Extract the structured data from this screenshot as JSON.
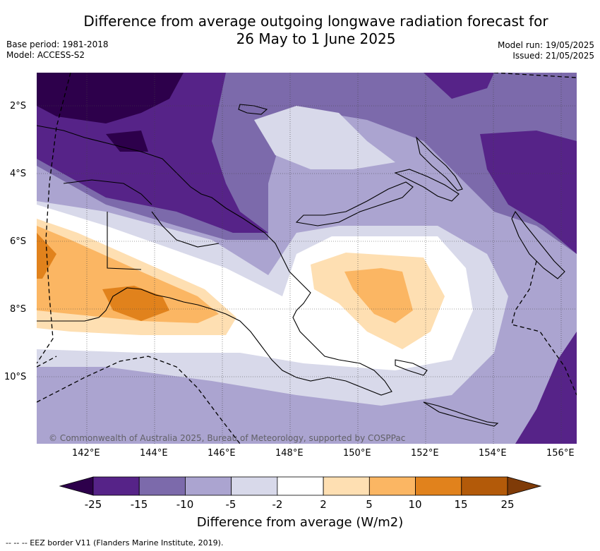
{
  "title_line1": "Difference from average outgoing longwave radiation forecast for",
  "title_line2": "26 May to 1 June 2025",
  "base_period": "Base period: 1981-2018",
  "model": "Model: ACCESS-S2",
  "model_run": "Model run: 19/05/2025",
  "issued": "Issued: 21/05/2025",
  "lat_ticks": [
    "2°S",
    "4°S",
    "6°S",
    "8°S",
    "10°S"
  ],
  "lon_ticks": [
    "142°E",
    "144°E",
    "146°E",
    "148°E",
    "150°E",
    "152°E",
    "154°E",
    "156°E"
  ],
  "copyright": "© Commonwealth of Australia 2025, Bureau of Meteorology, supported by COSPPac",
  "colorbar": {
    "labels": [
      "-25",
      "-15",
      "-10",
      "-5",
      "-2",
      "2",
      "5",
      "10",
      "15",
      "25"
    ],
    "colors": [
      "#562388",
      "#7c6aab",
      "#aba4d0",
      "#d8d9ea",
      "#ffffff",
      "#fedfb2",
      "#fbb663",
      "#e1821c",
      "#b35a09"
    ],
    "under_color": "#2d004b",
    "over_color": "#7f3b08",
    "title": "Difference from average (W/m2)"
  },
  "footer": "-- -- -- EEZ border V11 (Flanders Marine Institute, 2019)."
}
